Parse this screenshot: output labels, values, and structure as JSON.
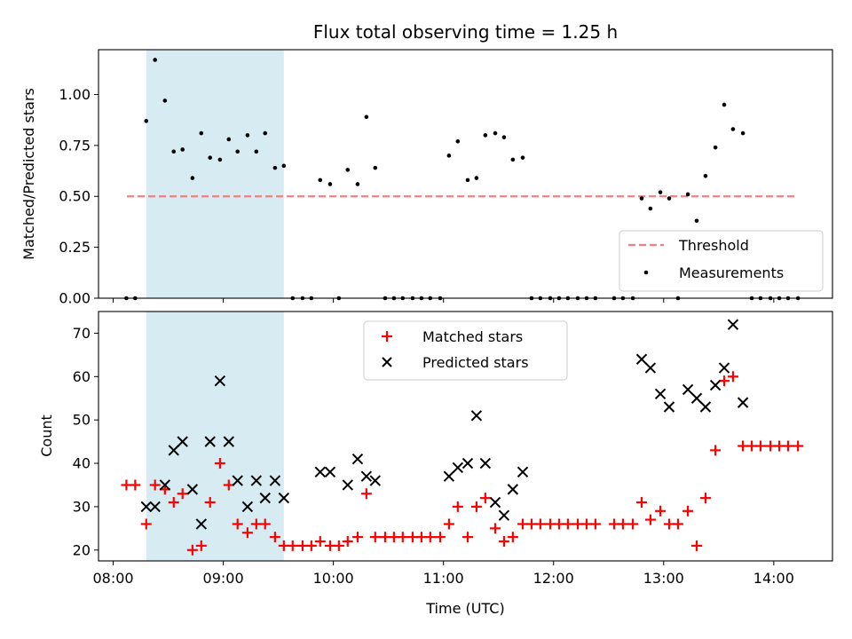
{
  "chart_data": [
    {
      "type": "scatter",
      "title": "Flux total observing time = 1.25 h",
      "xlabel": "",
      "ylabel": "Matched/Predicted stars",
      "ylim": [
        0,
        1.22
      ],
      "yticks": [
        "0.00",
        "0.25",
        "0.50",
        "0.75",
        "1.00"
      ],
      "ytick_values": [
        0,
        0.25,
        0.5,
        0.75,
        1.0
      ],
      "threshold": {
        "name": "Threshold",
        "value": 0.5,
        "x": [
          8.125,
          14.208
        ],
        "color": "#f08080"
      },
      "shaded_interval": {
        "x": [
          8.3,
          9.55
        ],
        "color": "#add8e6"
      },
      "series": [
        {
          "name": "Measurements",
          "color": "#000000",
          "points": [
            [
              8.12,
              0
            ],
            [
              8.2,
              0
            ],
            [
              8.3,
              0.87
            ],
            [
              8.38,
              1.17
            ],
            [
              8.47,
              0.97
            ],
            [
              8.55,
              0.72
            ],
            [
              8.63,
              0.73
            ],
            [
              8.72,
              0.59
            ],
            [
              8.8,
              0.81
            ],
            [
              8.88,
              0.69
            ],
            [
              8.97,
              0.68
            ],
            [
              9.05,
              0.78
            ],
            [
              9.13,
              0.72
            ],
            [
              9.22,
              0.8
            ],
            [
              9.3,
              0.72
            ],
            [
              9.38,
              0.81
            ],
            [
              9.47,
              0.64
            ],
            [
              9.55,
              0.65
            ],
            [
              9.63,
              0
            ],
            [
              9.72,
              0
            ],
            [
              9.8,
              0
            ],
            [
              9.88,
              0.58
            ],
            [
              9.97,
              0.56
            ],
            [
              10.05,
              0
            ],
            [
              10.13,
              0.63
            ],
            [
              10.22,
              0.56
            ],
            [
              10.3,
              0.89
            ],
            [
              10.38,
              0.64
            ],
            [
              10.47,
              0
            ],
            [
              10.55,
              0
            ],
            [
              10.63,
              0
            ],
            [
              10.72,
              0
            ],
            [
              10.8,
              0
            ],
            [
              10.88,
              0
            ],
            [
              10.97,
              0
            ],
            [
              11.05,
              0.7
            ],
            [
              11.13,
              0.77
            ],
            [
              11.22,
              0.58
            ],
            [
              11.3,
              0.59
            ],
            [
              11.38,
              0.8
            ],
            [
              11.47,
              0.81
            ],
            [
              11.55,
              0.79
            ],
            [
              11.63,
              0.68
            ],
            [
              11.72,
              0.69
            ],
            [
              11.8,
              0
            ],
            [
              11.88,
              0
            ],
            [
              11.97,
              0
            ],
            [
              12.05,
              0
            ],
            [
              12.13,
              0
            ],
            [
              12.22,
              0
            ],
            [
              12.3,
              0
            ],
            [
              12.38,
              0
            ],
            [
              12.55,
              0
            ],
            [
              12.63,
              0
            ],
            [
              12.72,
              0
            ],
            [
              12.8,
              0.49
            ],
            [
              12.88,
              0.44
            ],
            [
              12.97,
              0.52
            ],
            [
              13.05,
              0.49
            ],
            [
              13.13,
              0
            ],
            [
              13.22,
              0.51
            ],
            [
              13.3,
              0.38
            ],
            [
              13.38,
              0.6
            ],
            [
              13.47,
              0.74
            ],
            [
              13.55,
              0.95
            ],
            [
              13.63,
              0.83
            ],
            [
              13.72,
              0.81
            ],
            [
              13.8,
              0
            ],
            [
              13.88,
              0
            ],
            [
              13.97,
              0
            ],
            [
              14.05,
              0
            ],
            [
              14.13,
              0
            ],
            [
              14.22,
              0
            ]
          ]
        }
      ],
      "legend": {
        "placement": "lower right",
        "entries": [
          "Threshold",
          "Measurements"
        ]
      }
    },
    {
      "type": "scatter",
      "title": "",
      "xlabel": "Time (UTC)",
      "ylabel": "Count",
      "xlim": [
        "07:52",
        "14:32"
      ],
      "ylim": [
        17.5,
        75
      ],
      "xticks": [
        "08:00",
        "09:00",
        "10:00",
        "11:00",
        "12:00",
        "13:00",
        "14:00"
      ],
      "xtick_values": [
        8,
        9,
        10,
        11,
        12,
        13,
        14
      ],
      "yticks": [
        "20",
        "30",
        "40",
        "50",
        "60",
        "70"
      ],
      "ytick_values": [
        20,
        30,
        40,
        50,
        60,
        70
      ],
      "shaded_interval": {
        "x": [
          8.3,
          9.55
        ],
        "color": "#add8e6"
      },
      "series": [
        {
          "name": "Matched stars",
          "marker": "+",
          "color": "#ff0000",
          "points": [
            [
              8.12,
              35
            ],
            [
              8.2,
              35
            ],
            [
              8.3,
              26
            ],
            [
              8.38,
              35
            ],
            [
              8.47,
              34
            ],
            [
              8.55,
              31
            ],
            [
              8.63,
              33
            ],
            [
              8.72,
              20
            ],
            [
              8.8,
              21
            ],
            [
              8.88,
              31
            ],
            [
              8.97,
              40
            ],
            [
              9.05,
              35
            ],
            [
              9.13,
              26
            ],
            [
              9.22,
              24
            ],
            [
              9.3,
              26
            ],
            [
              9.38,
              26
            ],
            [
              9.47,
              23
            ],
            [
              9.55,
              21
            ],
            [
              9.63,
              21
            ],
            [
              9.72,
              21
            ],
            [
              9.8,
              21
            ],
            [
              9.88,
              22
            ],
            [
              9.97,
              21
            ],
            [
              10.05,
              21
            ],
            [
              10.13,
              22
            ],
            [
              10.22,
              23
            ],
            [
              10.3,
              33
            ],
            [
              10.38,
              23
            ],
            [
              10.47,
              23
            ],
            [
              10.55,
              23
            ],
            [
              10.63,
              23
            ],
            [
              10.72,
              23
            ],
            [
              10.8,
              23
            ],
            [
              10.88,
              23
            ],
            [
              10.97,
              23
            ],
            [
              11.05,
              26
            ],
            [
              11.13,
              30
            ],
            [
              11.22,
              23
            ],
            [
              11.3,
              30
            ],
            [
              11.38,
              32
            ],
            [
              11.47,
              25
            ],
            [
              11.55,
              22
            ],
            [
              11.63,
              23
            ],
            [
              11.72,
              26
            ],
            [
              11.8,
              26
            ],
            [
              11.88,
              26
            ],
            [
              11.97,
              26
            ],
            [
              12.05,
              26
            ],
            [
              12.13,
              26
            ],
            [
              12.22,
              26
            ],
            [
              12.3,
              26
            ],
            [
              12.38,
              26
            ],
            [
              12.55,
              26
            ],
            [
              12.63,
              26
            ],
            [
              12.72,
              26
            ],
            [
              12.8,
              31
            ],
            [
              12.88,
              27
            ],
            [
              12.97,
              29
            ],
            [
              13.05,
              26
            ],
            [
              13.13,
              26
            ],
            [
              13.22,
              29
            ],
            [
              13.3,
              21
            ],
            [
              13.38,
              32
            ],
            [
              13.47,
              43
            ],
            [
              13.55,
              59
            ],
            [
              13.63,
              60
            ],
            [
              13.72,
              44
            ],
            [
              13.8,
              44
            ],
            [
              13.88,
              44
            ],
            [
              13.97,
              44
            ],
            [
              14.05,
              44
            ],
            [
              14.13,
              44
            ],
            [
              14.22,
              44
            ]
          ]
        },
        {
          "name": "Predicted stars",
          "marker": "x",
          "color": "#000000",
          "points": [
            [
              8.3,
              30
            ],
            [
              8.38,
              30
            ],
            [
              8.47,
              35
            ],
            [
              8.55,
              43
            ],
            [
              8.63,
              45
            ],
            [
              8.72,
              34
            ],
            [
              8.8,
              26
            ],
            [
              8.88,
              45
            ],
            [
              8.97,
              59
            ],
            [
              9.05,
              45
            ],
            [
              9.13,
              36
            ],
            [
              9.22,
              30
            ],
            [
              9.3,
              36
            ],
            [
              9.38,
              32
            ],
            [
              9.47,
              36
            ],
            [
              9.55,
              32
            ],
            [
              9.88,
              38
            ],
            [
              9.97,
              38
            ],
            [
              10.13,
              35
            ],
            [
              10.22,
              41
            ],
            [
              10.3,
              37
            ],
            [
              10.38,
              36
            ],
            [
              11.05,
              37
            ],
            [
              11.13,
              39
            ],
            [
              11.22,
              40
            ],
            [
              11.3,
              51
            ],
            [
              11.38,
              40
            ],
            [
              11.47,
              31
            ],
            [
              11.55,
              28
            ],
            [
              11.63,
              34
            ],
            [
              11.72,
              38
            ],
            [
              12.8,
              64
            ],
            [
              12.88,
              62
            ],
            [
              12.97,
              56
            ],
            [
              13.05,
              53
            ],
            [
              13.22,
              57
            ],
            [
              13.3,
              55
            ],
            [
              13.38,
              53
            ],
            [
              13.47,
              58
            ],
            [
              13.55,
              62
            ],
            [
              13.63,
              72
            ],
            [
              13.72,
              54
            ]
          ]
        }
      ],
      "legend": {
        "placement": "upper center",
        "entries": [
          "Matched stars",
          "Predicted stars"
        ]
      }
    }
  ]
}
